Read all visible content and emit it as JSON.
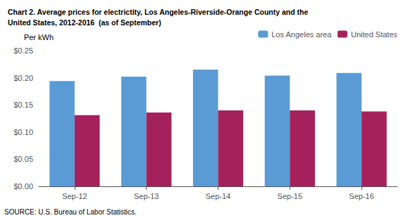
{
  "chart_data": {
    "type": "bar",
    "title": "Chart 2. Average prices for electrictity, Los Angeles-Riverside-Orange County and the\nUnited States, 2012-2016  (as of September)",
    "ylabel": "Per kWh",
    "annotations": [
      "SOURCE: U.S. Bureau of Labor Statistics."
    ],
    "categories": [
      "Sep-12",
      "Sep-13",
      "Sep-14",
      "Sep-15",
      "Sep-16"
    ],
    "series": [
      {
        "name": "Los Angeles area",
        "color": "#5B9BD5",
        "values": [
          0.194,
          0.202,
          0.215,
          0.204,
          0.209
        ]
      },
      {
        "name": "United States",
        "color": "#A5215B",
        "values": [
          0.131,
          0.136,
          0.14,
          0.14,
          0.138
        ]
      }
    ],
    "ylim": [
      0.0,
      0.25
    ],
    "yticks": [
      {
        "value": 0.0,
        "label": "$0.00"
      },
      {
        "value": 0.05,
        "label": "$0.05"
      },
      {
        "value": 0.1,
        "label": "$0.10"
      },
      {
        "value": 0.15,
        "label": "$0.15"
      },
      {
        "value": 0.2,
        "label": "$0.20"
      },
      {
        "value": 0.25,
        "label": "$0.25"
      }
    ],
    "grid": false,
    "legend": "upper right"
  }
}
